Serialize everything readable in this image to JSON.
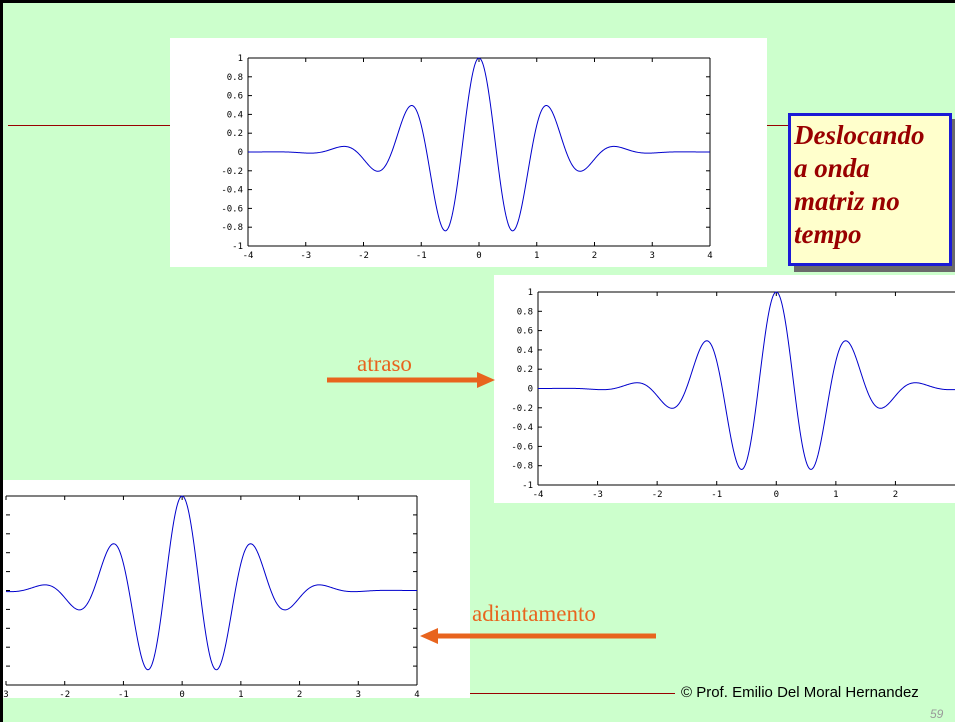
{
  "slide": {
    "background": "#ccffcc",
    "border_color": "#000000",
    "rule_color": "#990000"
  },
  "title": {
    "lines": [
      "Deslocando",
      "a onda",
      "matriz no",
      "tempo"
    ],
    "color": "#990000",
    "border_color": "#1a1ad6",
    "fill": "#ffffcc"
  },
  "labels": {
    "delay": "atraso",
    "advance": "adiantamento",
    "color": "#e8641e"
  },
  "footer": {
    "credit": "© Prof. Emilio Del Moral Hernandez",
    "page_number": "59"
  },
  "chart_data": [
    {
      "type": "line",
      "name": "reference",
      "ylim": [
        -1,
        1
      ],
      "xlim": [
        -4,
        4
      ],
      "yticks": [
        "1",
        "0.8",
        "0.6",
        "0.4",
        "0.2",
        "0",
        "-0.2",
        "-0.4",
        "-0.6",
        "-0.8",
        "-1"
      ],
      "xticks": [
        "-4",
        "-3",
        "-2",
        "-1",
        "0",
        "1",
        "2",
        "3",
        "4"
      ],
      "shift": 0,
      "line_color": "#0000cc"
    },
    {
      "type": "line",
      "name": "delayed",
      "ylim": [
        -1,
        1
      ],
      "xlim": [
        -4,
        3
      ],
      "yticks": [
        "1",
        "0.8",
        "0.6",
        "0.4",
        "0.2",
        "0",
        "-0.2",
        "-0.4",
        "-0.6",
        "-0.8",
        "-1"
      ],
      "xticks": [
        "-4",
        "-3",
        "-2",
        "-1",
        "0",
        "1",
        "2"
      ],
      "shift": 0,
      "line_color": "#0000cc"
    },
    {
      "type": "line",
      "name": "advanced",
      "ylim": [
        -1,
        1
      ],
      "xlim": [
        -3,
        4
      ],
      "yticks": [],
      "xticks": [
        "3",
        "-2",
        "-1",
        "0",
        "1",
        "2",
        "3",
        "4"
      ],
      "shift": 0,
      "line_color": "#0000cc"
    }
  ]
}
